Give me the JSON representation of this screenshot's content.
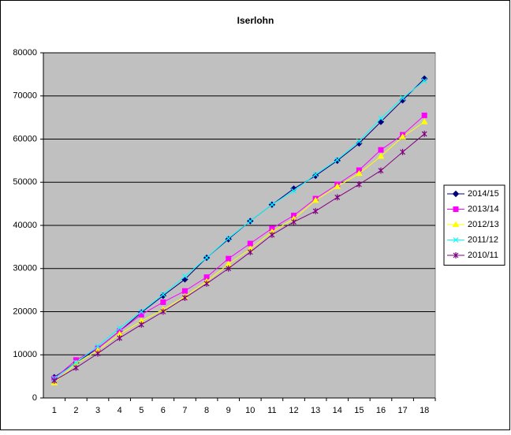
{
  "chart_data": {
    "type": "line",
    "title": "Iserlohn",
    "categories": [
      1,
      2,
      3,
      4,
      5,
      6,
      7,
      8,
      9,
      10,
      11,
      12,
      13,
      14,
      15,
      16,
      17,
      18
    ],
    "series": [
      {
        "name": "2014/15",
        "color": "#000080",
        "marker": "diamond",
        "values": [
          4800,
          8200,
          11500,
          15500,
          19800,
          23700,
          27500,
          32500,
          36800,
          41000,
          44800,
          48500,
          51500,
          55000,
          59000,
          64000,
          69000,
          74000
        ]
      },
      {
        "name": "2013/14",
        "color": "#ff00ff",
        "marker": "square",
        "values": [
          4500,
          8800,
          11500,
          15500,
          19300,
          22200,
          24800,
          28000,
          32300,
          35800,
          39300,
          42300,
          46200,
          49500,
          52800,
          57500,
          61000,
          65500
        ]
      },
      {
        "name": "2012/13",
        "color": "#ffff00",
        "marker": "triangle",
        "values": [
          3500,
          8000,
          11000,
          14800,
          17800,
          20500,
          23500,
          27000,
          31000,
          34500,
          38500,
          41500,
          45800,
          49000,
          52000,
          56000,
          60500,
          64000
        ]
      },
      {
        "name": "2011/12",
        "color": "#00ffff",
        "marker": "x",
        "values": [
          4500,
          8200,
          12000,
          16200,
          20000,
          24000,
          28200,
          32500,
          37000,
          41000,
          44800,
          48000,
          51800,
          55200,
          59500,
          64800,
          69500,
          73500
        ]
      },
      {
        "name": "2010/11",
        "color": "#800080",
        "marker": "star",
        "values": [
          4000,
          7000,
          10300,
          13900,
          17000,
          20000,
          23200,
          26500,
          30000,
          33800,
          37800,
          40800,
          43300,
          46500,
          49500,
          52700,
          57000,
          61200
        ]
      }
    ],
    "ylim": [
      0,
      80000
    ],
    "yticks": [
      0,
      10000,
      20000,
      30000,
      40000,
      50000,
      60000,
      70000,
      80000
    ],
    "grid": true,
    "legend": "right"
  }
}
